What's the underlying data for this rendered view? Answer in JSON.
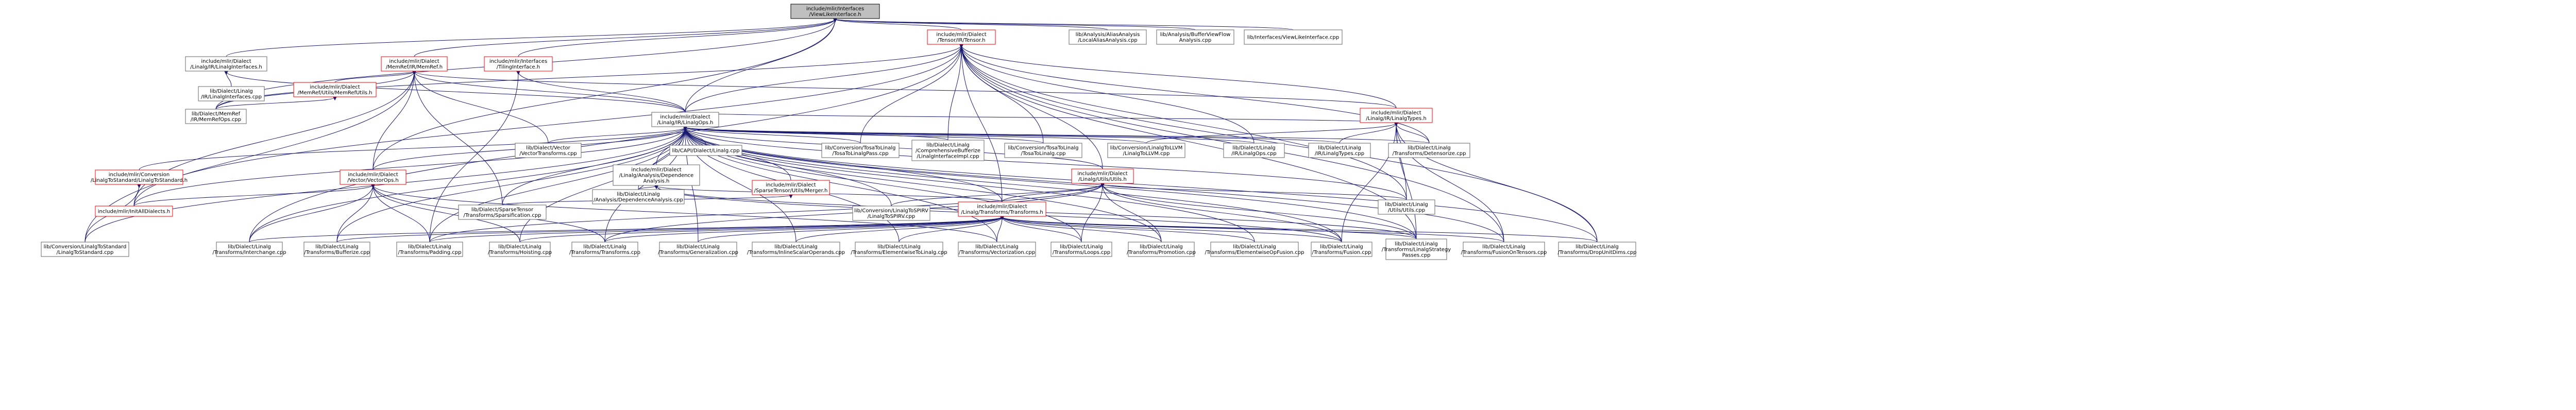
{
  "graph": {
    "root": "include/mlir/Interfaces/ViewLikeInterface.h",
    "nodes": [
      {
        "id": "n0",
        "lines": [
          "include/mlir/Interfaces",
          "/ViewLikeInterface.h"
        ],
        "style": "root"
      },
      {
        "id": "n1",
        "lines": [
          "include/mlir/Dialect",
          "/Tensor/IR/Tensor.h"
        ],
        "style": "red"
      },
      {
        "id": "n2",
        "lines": [
          "lib/Analysis/AliasAnalysis",
          "/LocalAliasAnalysis.cpp"
        ],
        "style": "normal"
      },
      {
        "id": "n3",
        "lines": [
          "lib/Analysis/BufferViewFlow",
          "Analysis.cpp"
        ],
        "style": "normal"
      },
      {
        "id": "n4",
        "lines": [
          "lib/Interfaces/ViewLikeInterface.cpp"
        ],
        "style": "normal"
      },
      {
        "id": "n5",
        "lines": [
          "include/mlir/Dialect",
          "/Linalg/IR/LinalgInterfaces.h"
        ],
        "style": "normal"
      },
      {
        "id": "n6",
        "lines": [
          "include/mlir/Dialect",
          "/MemRef/IR/MemRef.h"
        ],
        "style": "red"
      },
      {
        "id": "n7",
        "lines": [
          "include/mlir/Interfaces",
          "/TilingInterface.h"
        ],
        "style": "red"
      },
      {
        "id": "n8",
        "lines": [
          "lib/Dialect/Linalg",
          "/IR/LinalgInterfaces.cpp"
        ],
        "style": "normal"
      },
      {
        "id": "n9",
        "lines": [
          "include/mlir/Dialect",
          "/MemRef/Utils/MemRefUtils.h"
        ],
        "style": "red"
      },
      {
        "id": "n10",
        "lines": [
          "lib/Dialect/MemRef",
          "/IR/MemRefOps.cpp"
        ],
        "style": "normal"
      },
      {
        "id": "n11",
        "lines": [
          "include/mlir/Dialect",
          "/Linalg/IR/LinalgTypes.h"
        ],
        "style": "red"
      },
      {
        "id": "n12",
        "lines": [
          "include/mlir/Dialect",
          "/Linalg/IR/LinalgOps.h"
        ],
        "style": "normal"
      },
      {
        "id": "n13",
        "lines": [
          "lib/Dialect/Vector",
          "/VectorTransforms.cpp"
        ],
        "style": "normal"
      },
      {
        "id": "n14",
        "lines": [
          "lib/CAPI/Dialect/Linalg.cpp"
        ],
        "style": "normal"
      },
      {
        "id": "n15",
        "lines": [
          "include/mlir/Dialect",
          "/Linalg/Analysis/Dependence",
          "Analysis.h"
        ],
        "style": "normal"
      },
      {
        "id": "n16",
        "lines": [
          "lib/Conversion/TosaToLinalg",
          "/TosaToLinalgPass.cpp"
        ],
        "style": "normal"
      },
      {
        "id": "n17",
        "lines": [
          "lib/Dialect/Linalg",
          "/ComprehensiveBufferize",
          "/LinalgInterfaceImpl.cpp"
        ],
        "style": "normal"
      },
      {
        "id": "n18",
        "lines": [
          "lib/Conversion/TosaToLinalg",
          "/TosaToLinalg.cpp"
        ],
        "style": "normal"
      },
      {
        "id": "n19",
        "lines": [
          "lib/Conversion/LinalgToLLVM",
          "/LinalgToLLVM.cpp"
        ],
        "style": "normal"
      },
      {
        "id": "n20",
        "lines": [
          "lib/Dialect/Linalg",
          "/IR/LinalgOps.cpp"
        ],
        "style": "normal"
      },
      {
        "id": "n21",
        "lines": [
          "lib/Dialect/Linalg",
          "/IR/LinalgTypes.cpp"
        ],
        "style": "normal"
      },
      {
        "id": "n22",
        "lines": [
          "lib/Dialect/Linalg",
          "/Transforms/Detensorize.cpp"
        ],
        "style": "normal"
      },
      {
        "id": "n23",
        "lines": [
          "include/mlir/Conversion",
          "/LinalgToStandard/LinalgToStandard.h"
        ],
        "style": "red"
      },
      {
        "id": "n24",
        "lines": [
          "include/mlir/Dialect",
          "/Vector/VectorOps.h"
        ],
        "style": "red"
      },
      {
        "id": "n25",
        "lines": [
          "lib/Dialect/Linalg",
          "/Analysis/DependenceAnalysis.cpp"
        ],
        "style": "normal"
      },
      {
        "id": "n26",
        "lines": [
          "include/mlir/Dialect",
          "/SparseTensor/Utils/Merger.h"
        ],
        "style": "red"
      },
      {
        "id": "n27",
        "lines": [
          "include/mlir/Dialect",
          "/Linalg/Utils/Utils.h"
        ],
        "style": "red"
      },
      {
        "id": "n28",
        "lines": [
          "include/mlir/InitAllDialects.h"
        ],
        "style": "red"
      },
      {
        "id": "n29",
        "lines": [
          "lib/Dialect/SparseTensor",
          "/Transforms/Sparsification.cpp"
        ],
        "style": "normal"
      },
      {
        "id": "n30",
        "lines": [
          "lib/Conversion/LinalgToSPIRV",
          "/LinalgToSPIRV.cpp"
        ],
        "style": "normal"
      },
      {
        "id": "n31",
        "lines": [
          "include/mlir/Dialect",
          "/Linalg/Transforms/Transforms.h"
        ],
        "style": "red"
      },
      {
        "id": "n32",
        "lines": [
          "lib/Dialect/Linalg",
          "/Utils/Utils.cpp"
        ],
        "style": "normal"
      },
      {
        "id": "n33",
        "lines": [
          "lib/Conversion/LinalgToStandard",
          "/LinalgToStandard.cpp"
        ],
        "style": "normal"
      },
      {
        "id": "n34",
        "lines": [
          "lib/Dialect/Linalg",
          "/Transforms/Interchange.cpp"
        ],
        "style": "normal"
      },
      {
        "id": "n35",
        "lines": [
          "lib/Dialect/Linalg",
          "/Transforms/Bufferize.cpp"
        ],
        "style": "normal"
      },
      {
        "id": "n36",
        "lines": [
          "lib/Dialect/Linalg",
          "/Transforms/Padding.cpp"
        ],
        "style": "normal"
      },
      {
        "id": "n37",
        "lines": [
          "lib/Dialect/Linalg",
          "/Transforms/Hoisting.cpp"
        ],
        "style": "normal"
      },
      {
        "id": "n38",
        "lines": [
          "lib/Dialect/Linalg",
          "/Transforms/Transforms.cpp"
        ],
        "style": "normal"
      },
      {
        "id": "n39",
        "lines": [
          "lib/Dialect/Linalg",
          "/Transforms/Generalization.cpp"
        ],
        "style": "normal"
      },
      {
        "id": "n40",
        "lines": [
          "lib/Dialect/Linalg",
          "/Transforms/InlineScalarOperands.cpp"
        ],
        "style": "normal"
      },
      {
        "id": "n41",
        "lines": [
          "lib/Dialect/Linalg",
          "/Transforms/ElementwiseToLinalg.cpp"
        ],
        "style": "normal"
      },
      {
        "id": "n42",
        "lines": [
          "lib/Dialect/Linalg",
          "/Transforms/Vectorization.cpp"
        ],
        "style": "normal"
      },
      {
        "id": "n43",
        "lines": [
          "lib/Dialect/Linalg",
          "/Transforms/Loops.cpp"
        ],
        "style": "normal"
      },
      {
        "id": "n44",
        "lines": [
          "lib/Dialect/Linalg",
          "/Transforms/Promotion.cpp"
        ],
        "style": "normal"
      },
      {
        "id": "n45",
        "lines": [
          "lib/Dialect/Linalg",
          "/Transforms/ElementwiseOpFusion.cpp"
        ],
        "style": "normal"
      },
      {
        "id": "n46",
        "lines": [
          "lib/Dialect/Linalg",
          "/Transforms/Fusion.cpp"
        ],
        "style": "normal"
      },
      {
        "id": "n47",
        "lines": [
          "lib/Dialect/Linalg",
          "/Transforms/LinalgStrategy",
          "Passes.cpp"
        ],
        "style": "normal"
      },
      {
        "id": "n48",
        "lines": [
          "lib/Dialect/Linalg",
          "/Transforms/FusionOnTensors.cpp"
        ],
        "style": "normal"
      },
      {
        "id": "n49",
        "lines": [
          "lib/Dialect/Linalg",
          "/Transforms/DropUnitDims.cpp"
        ],
        "style": "normal"
      }
    ]
  }
}
